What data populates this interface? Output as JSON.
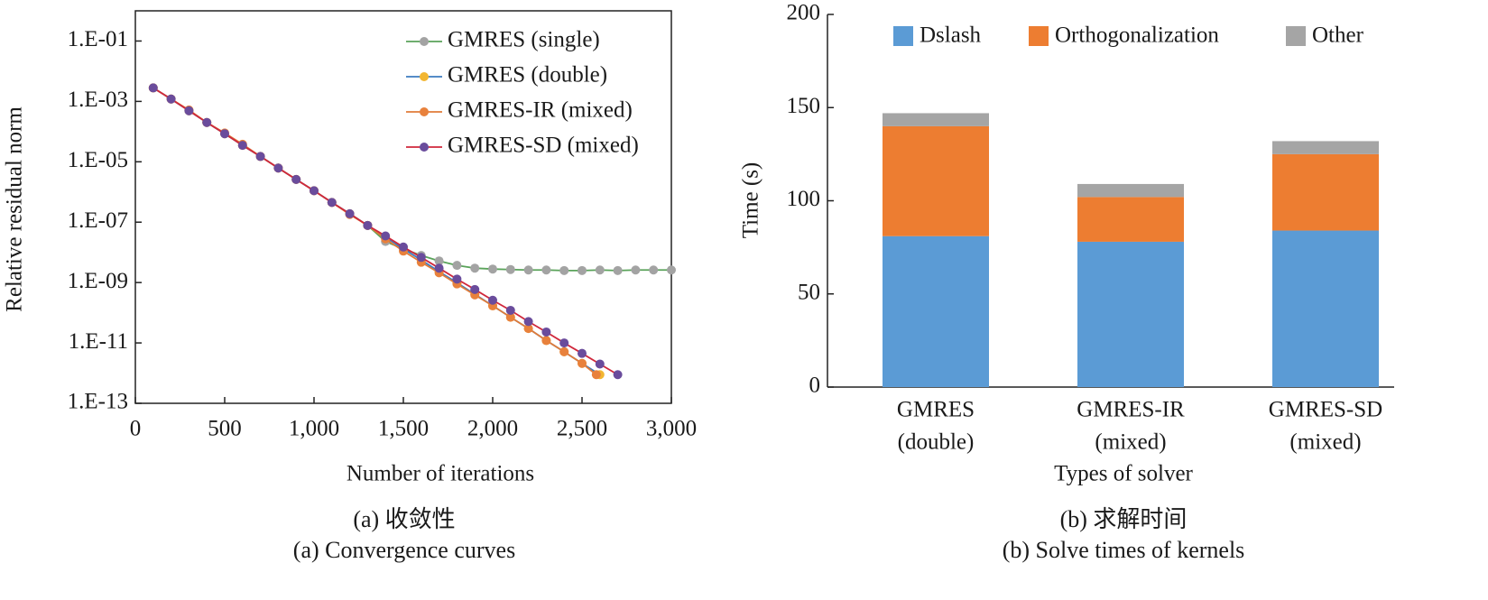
{
  "chart_data": [
    {
      "type": "line",
      "title": "(a) 收敛性",
      "subtitle": "(a) Convergence curves",
      "xlabel": "Number of iterations",
      "ylabel": "Relative residual norm",
      "yscale": "log",
      "xlim": [
        0,
        3000
      ],
      "ylim": [
        1e-13,
        1
      ],
      "xticks": [
        0,
        500,
        {
          "value": 1000,
          "label": "1,000"
        },
        {
          "value": 1500,
          "label": "1,500"
        },
        {
          "value": 2000,
          "label": "2,000"
        },
        {
          "value": 2500,
          "label": "2,500"
        },
        {
          "value": 3000,
          "label": "3,000"
        }
      ],
      "yticks": [
        {
          "value": 1e-13,
          "label": "1.E-13"
        },
        {
          "value": 1e-11,
          "label": "1.E-11"
        },
        {
          "value": 1e-09,
          "label": "1.E-09"
        },
        {
          "value": 1e-07,
          "label": "1.E-07"
        },
        {
          "value": 1e-05,
          "label": "1.E-05"
        },
        {
          "value": 0.001,
          "label": "1.E-03"
        },
        {
          "value": 0.1,
          "label": "1.E-01"
        }
      ],
      "legend": "upper right",
      "series": [
        {
          "name": "GMRES (single)",
          "color": "#5aa35a",
          "marker_color": "#a3a3a3",
          "x": [
            100,
            200,
            300,
            400,
            500,
            600,
            700,
            800,
            900,
            1000,
            1100,
            1200,
            1300,
            1400,
            1500,
            1600,
            1700,
            1800,
            1900,
            2000,
            2100,
            2200,
            2300,
            2400,
            2500,
            2600,
            2700,
            2800,
            2900,
            3000
          ],
          "values": [
            0.0028,
            0.0012,
            0.00049,
            0.0002,
            8.5e-05,
            3.5e-05,
            1.5e-05,
            6.2e-06,
            2.6e-06,
            1.1e-06,
            4.5e-07,
            1.9e-07,
            7.8e-08,
            2.3e-08,
            1.3e-08,
            7.9e-09,
            5.2e-09,
            3.7e-09,
            3e-09,
            2.8e-09,
            2.7e-09,
            2.6e-09,
            2.6e-09,
            2.5e-09,
            2.5e-09,
            2.6e-09,
            2.5e-09,
            2.6e-09,
            2.6e-09,
            2.6e-09
          ]
        },
        {
          "name": "GMRES (double)",
          "color": "#3d7cc0",
          "marker_color": "#f2b632",
          "x": [
            100,
            200,
            300,
            400,
            500,
            600,
            700,
            800,
            900,
            1000,
            1100,
            1200,
            1300,
            1400,
            1500,
            1600,
            1700,
            1800,
            1900,
            2000,
            2100,
            2200,
            2300,
            2400,
            2500,
            2600
          ],
          "values": [
            0.0028,
            0.0012,
            0.00049,
            0.0002,
            8.5e-05,
            3.5e-05,
            1.5e-05,
            6.2e-06,
            2.6e-06,
            1.1e-06,
            4.5e-07,
            1.9e-07,
            7.8e-08,
            3.2e-08,
            1.3e-08,
            5.6e-09,
            2.3e-09,
            9.8e-10,
            4.1e-10,
            1.7e-10,
            7.1e-11,
            3e-11,
            1.2e-11,
            5.1e-12,
            2.1e-12,
            8.9e-13
          ]
        },
        {
          "name": "GMRES-IR (mixed)",
          "color": "#e07b39",
          "marker_color": "#e8813c",
          "x": [
            100,
            200,
            300,
            400,
            500,
            600,
            700,
            800,
            900,
            1000,
            1100,
            1200,
            1300,
            1400,
            1500,
            1600,
            1700,
            1800,
            1900,
            2000,
            2100,
            2200,
            2300,
            2400,
            2500,
            2580
          ],
          "values": [
            0.0028,
            0.0012,
            0.00052,
            0.0002,
            9e-05,
            3.8e-05,
            1.5e-05,
            6.2e-06,
            2.6e-06,
            1.1e-06,
            4.5e-07,
            1.8e-07,
            7.8e-08,
            2.8e-08,
            1.1e-08,
            4.7e-09,
            2.1e-09,
            9e-10,
            3.9e-10,
            1.7e-10,
            7.1e-11,
            3e-11,
            1.2e-11,
            5.1e-12,
            2.1e-12,
            8.9e-13
          ]
        },
        {
          "name": "GMRES-SD (mixed)",
          "color": "#d0283c",
          "marker_color": "#6a4c9c",
          "x": [
            100,
            200,
            300,
            400,
            500,
            600,
            700,
            800,
            900,
            1000,
            1100,
            1200,
            1300,
            1400,
            1500,
            1600,
            1700,
            1800,
            1900,
            2000,
            2100,
            2200,
            2300,
            2400,
            2500,
            2600,
            2700
          ],
          "values": [
            0.0028,
            0.0012,
            0.00049,
            0.0002,
            8.5e-05,
            3.5e-05,
            1.5e-05,
            6.2e-06,
            2.6e-06,
            1.1e-06,
            4.5e-07,
            1.9e-07,
            7.8e-08,
            3.5e-08,
            1.5e-08,
            6.8e-09,
            3e-09,
            1.3e-09,
            5.9e-10,
            2.6e-10,
            1.2e-10,
            5.1e-11,
            2.3e-11,
            1e-11,
            4.5e-12,
            2e-12,
            8.9e-13
          ]
        }
      ]
    },
    {
      "type": "stacked_bar",
      "title": "(b) 求解时间",
      "subtitle": "(b) Solve times of kernels",
      "xlabel": "Types of solver",
      "ylabel": "Time (s)",
      "categories": [
        [
          "GMRES",
          "(double)"
        ],
        [
          "GMRES-IR",
          "(mixed)"
        ],
        [
          "GMRES-SD",
          "(mixed)"
        ]
      ],
      "ylim": [
        0,
        200
      ],
      "yticks": [
        0,
        50,
        100,
        150,
        200
      ],
      "legend": "upper center",
      "series": [
        {
          "name": "Dslash",
          "color": "#5b9bd5",
          "values": [
            81,
            78,
            84
          ]
        },
        {
          "name": "Orthogonalization",
          "color": "#ed7d31",
          "values": [
            59,
            24,
            41
          ]
        },
        {
          "name": "Other",
          "color": "#a5a5a5",
          "values": [
            7,
            7,
            7
          ]
        }
      ]
    }
  ]
}
